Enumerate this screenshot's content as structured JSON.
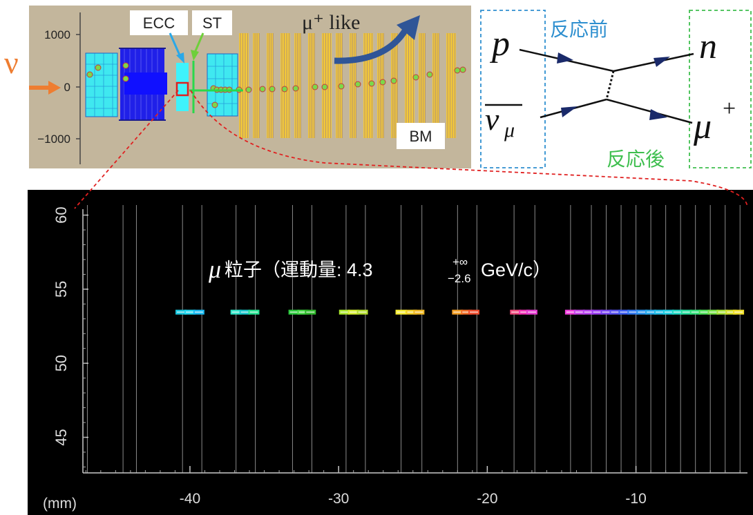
{
  "detector": {
    "ytick_labels": [
      "1000",
      "0",
      "−1000"
    ],
    "neutrino_symbol": "ν",
    "ecc_label": "ECC",
    "st_label": "ST",
    "bm_label": "BM",
    "mu_like_label": "μ⁺ like",
    "colors": {
      "background": "#c3b69c",
      "ecc": "#3ff3fb",
      "bm_plate": "#f2c83a",
      "arrow": "#2f5597",
      "neutrino_arrow": "#ee7d31"
    }
  },
  "feynman": {
    "before_label": "反応前",
    "after_label": "反応後",
    "p_label": "p",
    "nubar_label": "ν",
    "nubar_sub": "μ",
    "n_label": "n",
    "mu_label": "μ",
    "mu_sup": "+"
  },
  "track": {
    "title_mu": "μ",
    "title_text": "粒子（運動量: 4.3",
    "title_sup": "+∞",
    "title_sub": "−2.6",
    "title_unit": "GeV/c）",
    "unit_label": "(mm)",
    "colors": {
      "background": "#000000",
      "axis": "#cccccc",
      "plate_line": "#8a8a8a",
      "callout": "#e02020"
    }
  },
  "chart_data": {
    "type": "scatter",
    "xlabel": "(mm)",
    "x_ticks": [
      -40,
      -30,
      -20,
      -10
    ],
    "y_ticks": [
      45,
      50,
      55,
      60
    ],
    "xlim": [
      -47.2,
      -2.5
    ],
    "ylim": [
      42.6,
      60.4
    ],
    "series": [
      {
        "values": [
          {
            "x": -40.6,
            "y": 53.45,
            "c": "#17c6dd"
          },
          {
            "x": -40.0,
            "y": 53.45,
            "c": "#22d7ef"
          },
          {
            "x": -39.4,
            "y": 53.45,
            "c": "#19b9f0"
          },
          {
            "x": -36.9,
            "y": 53.45,
            "c": "#2fe6c8"
          },
          {
            "x": -36.3,
            "y": 53.45,
            "c": "#18c6cc"
          },
          {
            "x": -35.7,
            "y": 53.45,
            "c": "#22e090"
          },
          {
            "x": -33.0,
            "y": 53.45,
            "c": "#2ac83c"
          },
          {
            "x": -32.4,
            "y": 53.45,
            "c": "#46d946"
          },
          {
            "x": -31.9,
            "y": 53.45,
            "c": "#2fb82b"
          },
          {
            "x": -29.6,
            "y": 53.45,
            "c": "#a9e62c"
          },
          {
            "x": -29.0,
            "y": 53.45,
            "c": "#d6ef34"
          },
          {
            "x": -28.4,
            "y": 53.45,
            "c": "#b2dc2d"
          },
          {
            "x": -25.8,
            "y": 53.45,
            "c": "#f5ec33"
          },
          {
            "x": -25.1,
            "y": 53.45,
            "c": "#f2d22b"
          },
          {
            "x": -24.6,
            "y": 53.45,
            "c": "#efb823"
          },
          {
            "x": -22.0,
            "y": 53.45,
            "c": "#f29d23"
          },
          {
            "x": -21.4,
            "y": 53.45,
            "c": "#f26f28"
          },
          {
            "x": -20.9,
            "y": 53.45,
            "c": "#ee4d2e"
          },
          {
            "x": -18.1,
            "y": 53.45,
            "c": "#f04a7c"
          },
          {
            "x": -17.5,
            "y": 53.45,
            "c": "#f232b5"
          },
          {
            "x": -17.0,
            "y": 53.45,
            "c": "#e43ad0"
          },
          {
            "x": -14.4,
            "y": 53.45,
            "c": "#f03cdc"
          },
          {
            "x": -13.8,
            "y": 53.45,
            "c": "#c646ea"
          },
          {
            "x": -13.2,
            "y": 53.45,
            "c": "#b744f0"
          },
          {
            "x": -12.6,
            "y": 53.45,
            "c": "#9a3cf0"
          },
          {
            "x": -12.0,
            "y": 53.45,
            "c": "#7a44f2"
          },
          {
            "x": -11.4,
            "y": 53.45,
            "c": "#5a52f2"
          },
          {
            "x": -10.8,
            "y": 53.45,
            "c": "#3b5cf2"
          },
          {
            "x": -10.2,
            "y": 53.45,
            "c": "#2f76f0"
          },
          {
            "x": -9.6,
            "y": 53.45,
            "c": "#2a92ee"
          },
          {
            "x": -9.0,
            "y": 53.45,
            "c": "#25a8ea"
          },
          {
            "x": -8.4,
            "y": 53.45,
            "c": "#20bce6"
          },
          {
            "x": -7.8,
            "y": 53.45,
            "c": "#1ccce0"
          },
          {
            "x": -7.2,
            "y": 53.45,
            "c": "#1fd8c4"
          },
          {
            "x": -6.6,
            "y": 53.45,
            "c": "#25dd9e"
          },
          {
            "x": -6.0,
            "y": 53.45,
            "c": "#30e07a"
          },
          {
            "x": -5.4,
            "y": 53.45,
            "c": "#4ee05a"
          },
          {
            "x": -4.8,
            "y": 53.45,
            "c": "#75e046"
          },
          {
            "x": -4.2,
            "y": 53.45,
            "c": "#a6e038"
          },
          {
            "x": -3.6,
            "y": 53.45,
            "c": "#d2e02e"
          },
          {
            "x": -3.1,
            "y": 53.45,
            "c": "#f0e02a"
          }
        ]
      }
    ],
    "plate_x": [
      -46.9,
      -44.5,
      -43.6,
      -40.5,
      -39.2,
      -36.9,
      -35.6,
      -33.1,
      -31.8,
      -29.5,
      -28.2,
      -25.8,
      -24.4,
      -22.0,
      -20.7,
      -18.2,
      -16.8,
      -14.4,
      -13.0,
      -12.0,
      -11.0,
      -10.0,
      -9.0,
      -8.0,
      -7.0,
      -6.0,
      -5.0,
      -4.0,
      -3.0
    ],
    "grid": false
  }
}
